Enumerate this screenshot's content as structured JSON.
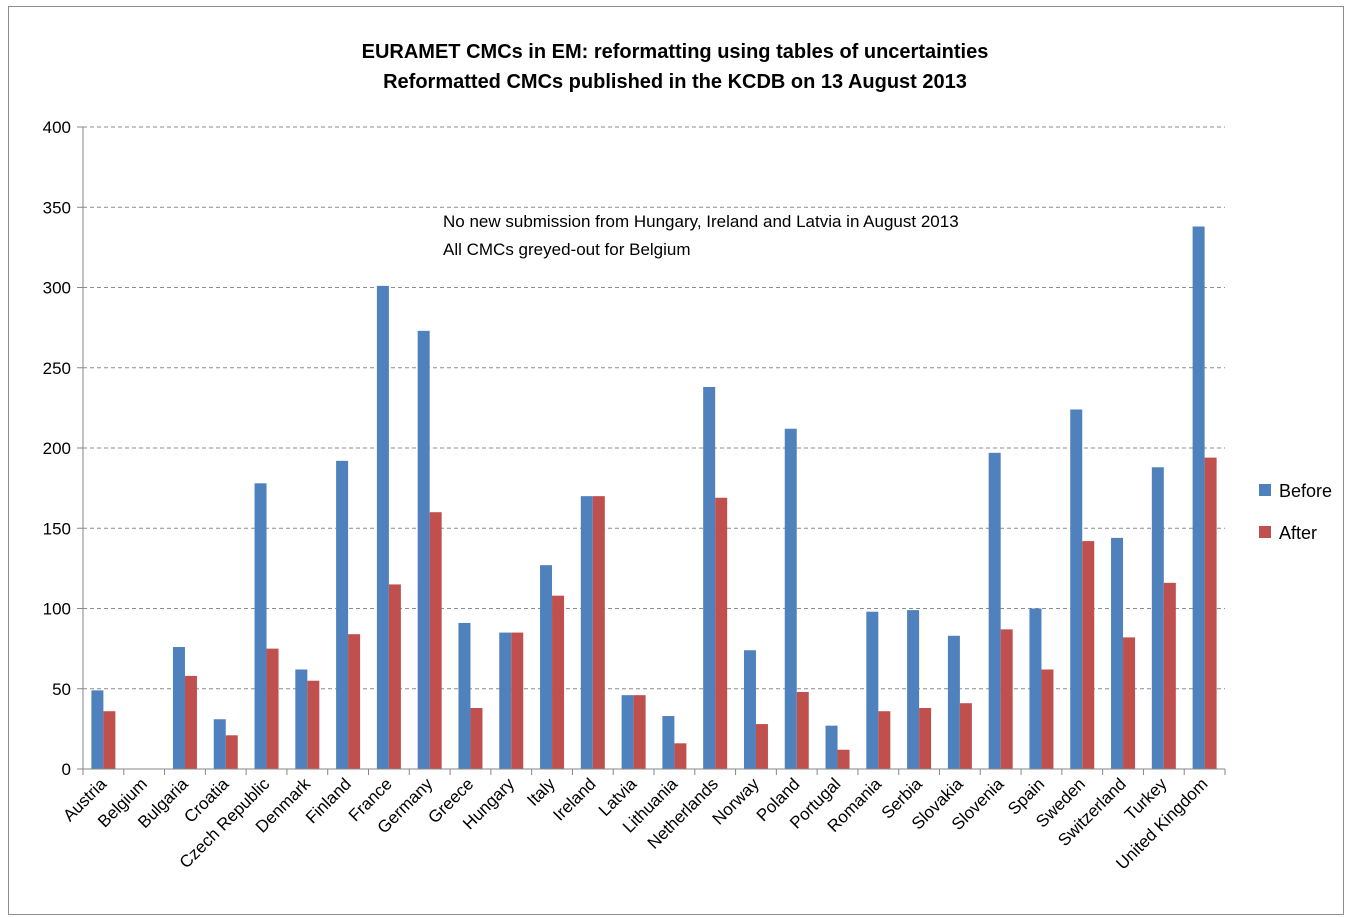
{
  "chart_data": {
    "type": "bar",
    "title": "EURAMET CMCs in EM: reformatting using tables of uncertainties",
    "subtitle": "Reformatted CMCs published in the KCDB on 13 August 2013",
    "annotations": [
      "No new submission from Hungary, Ireland and Latvia in August 2013",
      "All CMCs greyed-out for Belgium"
    ],
    "categories": [
      "Austria",
      "Belgium",
      "Bulgaria",
      "Croatia",
      "Czech Republic",
      "Denmark",
      "Finland",
      "France",
      "Germany",
      "Greece",
      "Hungary",
      "Italy",
      "Ireland",
      "Latvia",
      "Lithuania",
      "Netherlands",
      "Norway",
      "Poland",
      "Portugal",
      "Romania",
      "Serbia",
      "Slovakia",
      "Slovenia",
      "Spain",
      "Sweden",
      "Switzerland",
      "Turkey",
      "United Kingdom"
    ],
    "series": [
      {
        "name": "Before",
        "color": "#4f81bd",
        "values": [
          49,
          0,
          76,
          31,
          178,
          62,
          192,
          301,
          273,
          91,
          85,
          127,
          170,
          46,
          33,
          238,
          74,
          212,
          27,
          98,
          99,
          83,
          197,
          100,
          224,
          144,
          188,
          338
        ]
      },
      {
        "name": "After",
        "color": "#c0504d",
        "values": [
          36,
          0,
          58,
          21,
          75,
          55,
          84,
          115,
          160,
          38,
          85,
          108,
          170,
          46,
          16,
          169,
          28,
          48,
          12,
          36,
          38,
          41,
          87,
          62,
          142,
          82,
          116,
          194
        ]
      }
    ],
    "ylim": [
      0,
      400
    ],
    "yticks": [
      0,
      50,
      100,
      150,
      200,
      250,
      300,
      350,
      400
    ],
    "grid": true,
    "legend_position": "right"
  }
}
